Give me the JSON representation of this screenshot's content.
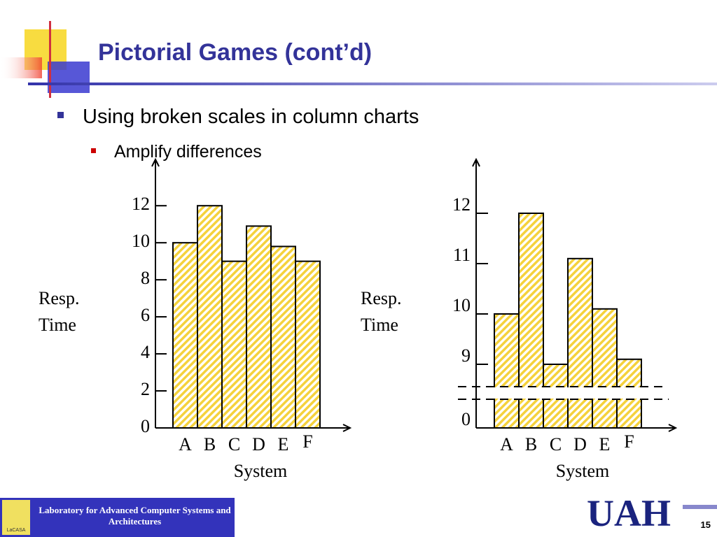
{
  "title": "Pictorial Games (cont’d)",
  "bullets": [
    "Using broken scales in column charts",
    "Amplify differences"
  ],
  "footer": {
    "lab": "Laboratory for Advanced Computer Systems and Architectures",
    "logo": "LaCASA",
    "university": "UAH",
    "page": "15"
  },
  "chart_data": [
    {
      "type": "bar",
      "categories": [
        "A",
        "B",
        "C",
        "D",
        "E",
        "F"
      ],
      "values": [
        10,
        12,
        9,
        10.9,
        9.8,
        9
      ],
      "ylim": [
        0,
        14.5
      ],
      "yticks": [
        0,
        2,
        4,
        6,
        8,
        10,
        12
      ],
      "ylabel": "Resp. Time",
      "xlabel": "System",
      "color": "#f5d23c",
      "broken_scale": false
    },
    {
      "type": "bar",
      "categories": [
        "A",
        "B",
        "C",
        "D",
        "E",
        "F"
      ],
      "values": [
        10,
        12,
        9,
        11.1,
        10.1,
        9.1
      ],
      "ylim": [
        0,
        13
      ],
      "yticks": [
        0,
        9,
        10,
        11,
        12
      ],
      "ylabel": "Resp. Time",
      "xlabel": "System",
      "color": "#f5d23c",
      "broken_scale": true
    }
  ]
}
